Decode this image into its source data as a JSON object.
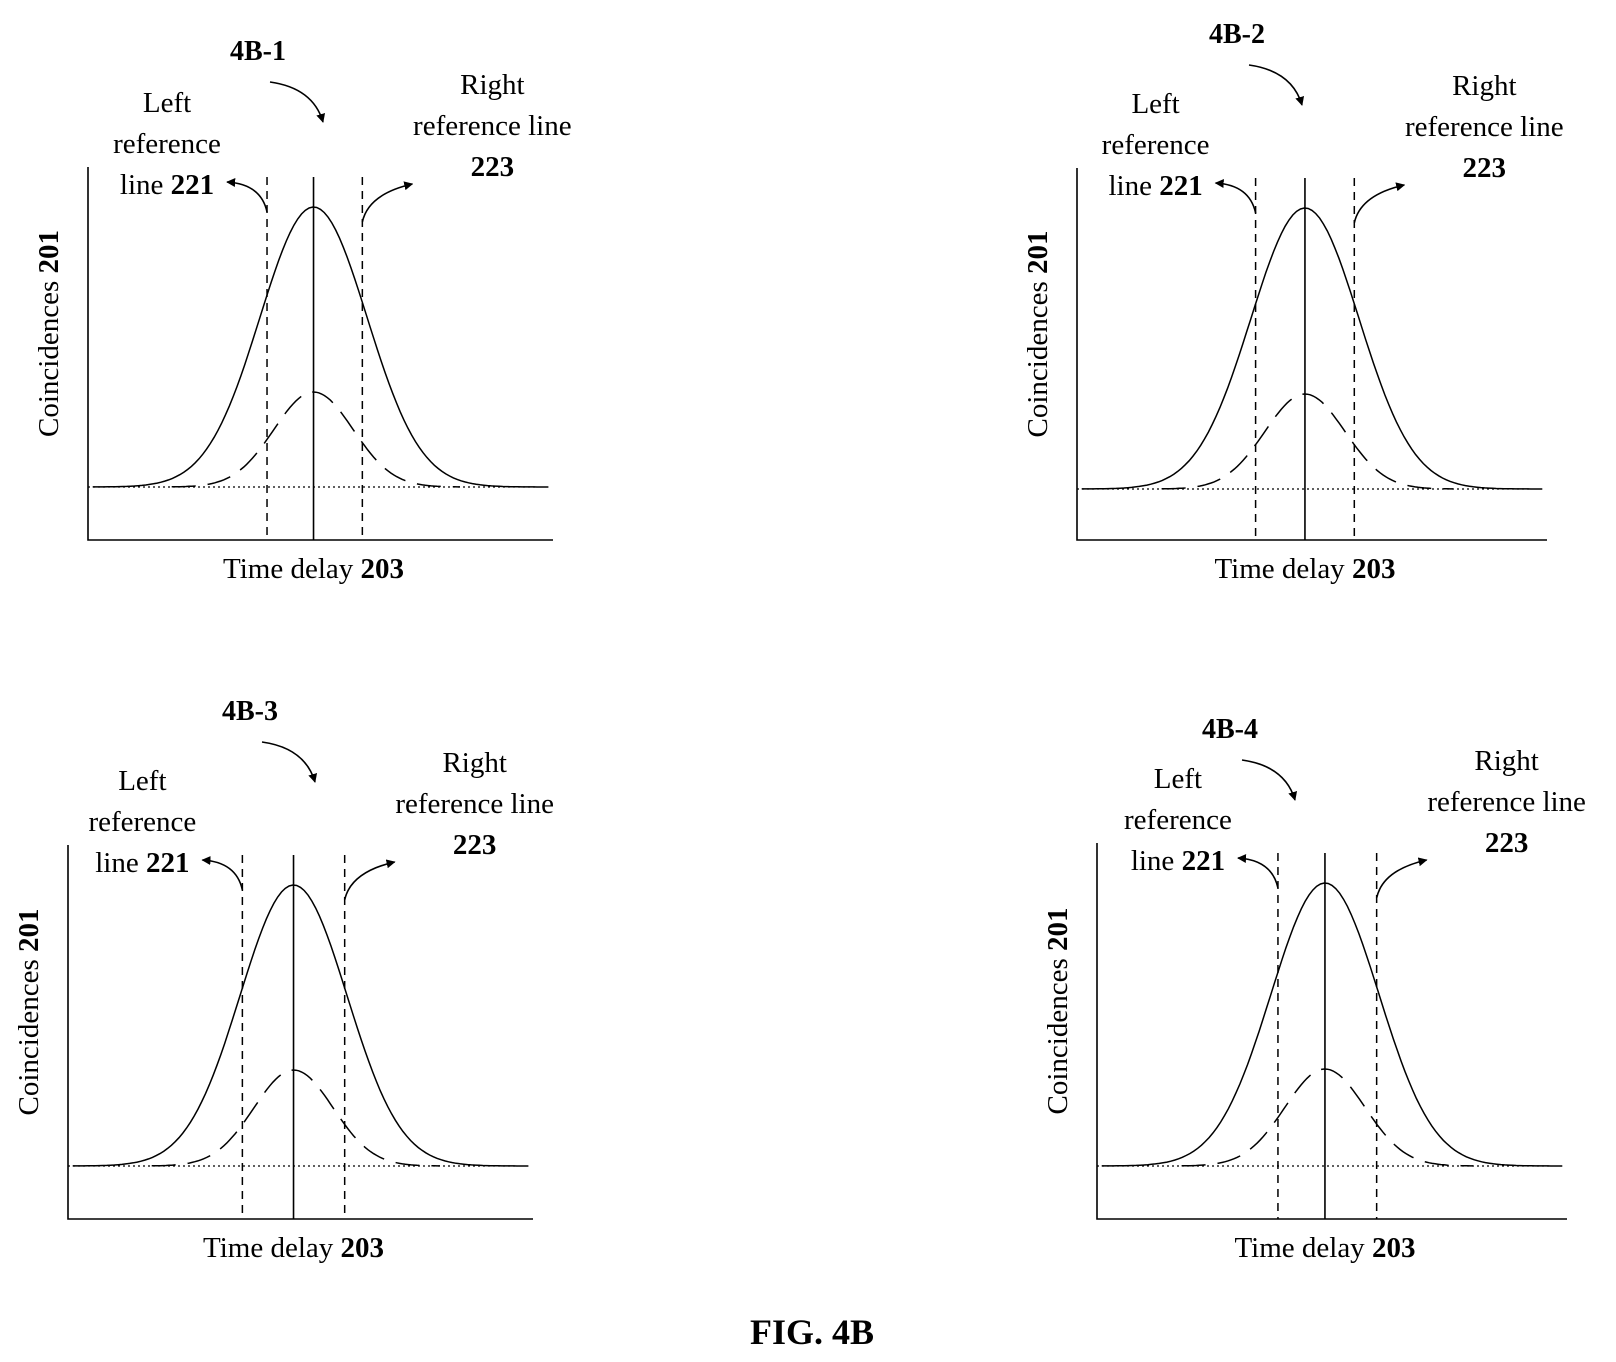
{
  "figure": {
    "caption": "FIG. 4B",
    "panels": [
      {
        "id": "4B-1",
        "y_label_text": "Coincidences ",
        "y_label_num": "201",
        "x_label_text": "Time delay ",
        "x_label_num": "203",
        "left_ref": [
          "Left",
          "reference",
          "line "
        ],
        "left_ref_num": "221",
        "right_ref": [
          "Right",
          "reference line"
        ],
        "right_ref_num": "223",
        "center_rel": 0.485,
        "left_ref_rel": 0.385,
        "right_ref_rel": 0.59
      },
      {
        "id": "4B-2",
        "y_label_text": "Coincidences ",
        "y_label_num": "201",
        "x_label_text": "Time delay ",
        "x_label_num": "203",
        "left_ref": [
          "Left",
          "reference",
          "line "
        ],
        "left_ref_num": "221",
        "right_ref": [
          "Right",
          "reference line"
        ],
        "right_ref_num": "223",
        "center_rel": 0.485,
        "left_ref_rel": 0.38,
        "right_ref_rel": 0.59
      },
      {
        "id": "4B-3",
        "y_label_text": "Coincidences ",
        "y_label_num": "201",
        "x_label_text": "Time delay ",
        "x_label_num": "203",
        "left_ref": [
          "Left",
          "reference",
          "line "
        ],
        "left_ref_num": "221",
        "right_ref": [
          "Right",
          "reference line"
        ],
        "right_ref_num": "223",
        "center_rel": 0.485,
        "left_ref_rel": 0.375,
        "right_ref_rel": 0.595
      },
      {
        "id": "4B-4",
        "y_label_text": "Coincidences ",
        "y_label_num": "201",
        "x_label_text": "Time delay ",
        "x_label_num": "203",
        "left_ref": [
          "Left",
          "reference",
          "line "
        ],
        "left_ref_num": "221",
        "right_ref": [
          "Right",
          "reference line"
        ],
        "right_ref_num": "223",
        "center_rel": 0.485,
        "left_ref_rel": 0.385,
        "right_ref_rel": 0.595
      }
    ]
  }
}
